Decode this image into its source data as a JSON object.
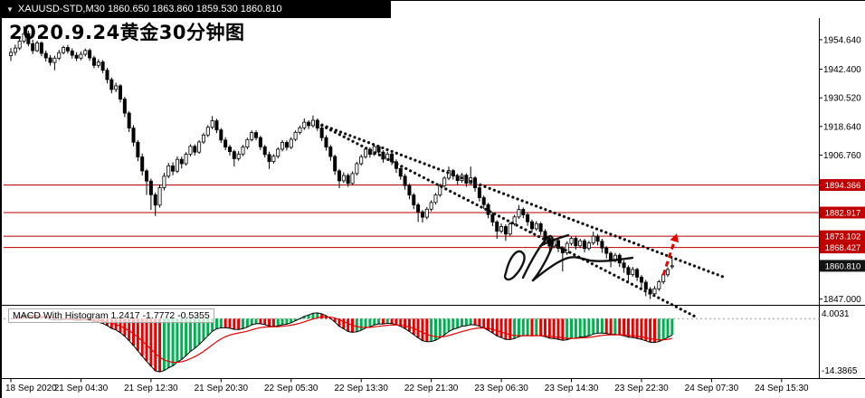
{
  "titlebar": {
    "dropdown_icon": "triangle-down",
    "symbol_line": "XAUUSD-STD,M30  1860.650 1863.860 1859.530 1860.810"
  },
  "chart_title": "2020.9.24黄金30分钟图",
  "macd_panel": {
    "name": "MACD With Histogram",
    "values": "1.2417 -1.7772 -0.5355",
    "axis_top": "4.0031",
    "axis_bottom": "-14.3865"
  },
  "price_axis": {
    "plain_labels": [
      {
        "text": "1954.640",
        "price": 1954.64
      },
      {
        "text": "1942.400",
        "price": 1942.4
      },
      {
        "text": "1930.520",
        "price": 1930.52
      },
      {
        "text": "1918.640",
        "price": 1918.64
      },
      {
        "text": "1906.760",
        "price": 1906.76
      },
      {
        "text": "1847.000",
        "price": 1847.0
      }
    ],
    "level_badges": [
      {
        "text": "1894.366",
        "price": 1894.366
      },
      {
        "text": "1882.917",
        "price": 1882.917
      },
      {
        "text": "1873.102",
        "price": 1873.102
      },
      {
        "text": "1868.427",
        "price": 1868.427
      }
    ],
    "current_badge": {
      "text": "1860.810",
      "price": 1860.81
    }
  },
  "time_axis": {
    "labels": [
      "18 Sep 2020",
      "21 Sep 04:30",
      "21 Sep 12:30",
      "21 Sep 20:30",
      "22 Sep 05:30",
      "22 Sep 13:30",
      "22 Sep 21:30",
      "23 Sep 06:30",
      "23 Sep 14:30",
      "23 Sep 22:30",
      "24 Sep 07:30",
      "24 Sep 15:30"
    ],
    "bars_per_label": 16
  },
  "colors": {
    "up_candle": "#ffffff",
    "down_candle": "#000000",
    "candle_border": "#000000",
    "level_line": "#b40000",
    "level_badge_bg": "#c00000",
    "current_badge_bg": "#141414",
    "hist_up": "#00b050",
    "hist_down": "#e60000",
    "macd_line": "#000000",
    "signal_line": "#e60000",
    "trendline": "#111111",
    "arrow": "#e60000",
    "zero_line": "#9a9a9a"
  },
  "chart_data": {
    "type": "candlestick",
    "title": "2020.9.24黄金30分钟图",
    "symbol": "XAUUSD-STD",
    "timeframe": "M30",
    "last_ohlc": {
      "open": 1860.65,
      "high": 1863.86,
      "low": 1859.53,
      "close": 1860.81
    },
    "price_range": [
      1845.0,
      1962.5
    ],
    "x_labels": [
      "18 Sep 2020",
      "21 Sep 04:30",
      "21 Sep 12:30",
      "21 Sep 20:30",
      "22 Sep 05:30",
      "22 Sep 13:30",
      "22 Sep 21:30",
      "23 Sep 06:30",
      "23 Sep 14:30",
      "23 Sep 22:30",
      "24 Sep 07:30",
      "24 Sep 15:30"
    ],
    "levels": [
      1894.366,
      1882.917,
      1873.102,
      1868.427
    ],
    "current_price": 1860.81,
    "trendlines": [
      {
        "style": "dotted",
        "from": {
          "bar": 70,
          "price": 1920
        },
        "to": {
          "bar": 163,
          "price": 1856
        }
      },
      {
        "style": "dotted",
        "from": {
          "bar": 70,
          "price": 1920
        },
        "to": {
          "bar": 156,
          "price": 1840
        }
      }
    ],
    "arrow": {
      "direction": "up",
      "from": {
        "bar": 149,
        "price": 1857
      },
      "to": {
        "bar": 151.5,
        "price": 1871
      }
    },
    "macd": {
      "label": "MACD With Histogram",
      "current_values": [
        1.2417,
        -1.7772,
        -0.5355
      ],
      "axis_top": 4.0031,
      "axis_bottom": -14.3865
    },
    "candles": [
      [
        1948.0,
        1951.2,
        1945.8,
        1949.4
      ],
      [
        1949.4,
        1952.6,
        1948.1,
        1951.2
      ],
      [
        1951.2,
        1955.0,
        1950.3,
        1954.1
      ],
      [
        1954.1,
        1960.3,
        1953.2,
        1957.2
      ],
      [
        1957.2,
        1958.4,
        1951.9,
        1953.0
      ],
      [
        1953.0,
        1954.6,
        1948.7,
        1950.1
      ],
      [
        1950.1,
        1954.2,
        1949.5,
        1953.3
      ],
      [
        1953.3,
        1954.0,
        1947.8,
        1949.0
      ],
      [
        1949.0,
        1950.2,
        1945.6,
        1947.1
      ],
      [
        1947.1,
        1948.3,
        1943.9,
        1945.2
      ],
      [
        1945.2,
        1948.0,
        1942.0,
        1947.0
      ],
      [
        1947.0,
        1950.4,
        1946.2,
        1949.3
      ],
      [
        1949.3,
        1952.2,
        1948.6,
        1951.4
      ],
      [
        1951.4,
        1952.5,
        1948.9,
        1950.0
      ],
      [
        1950.0,
        1951.1,
        1946.9,
        1948.2
      ],
      [
        1948.2,
        1949.5,
        1945.8,
        1947.0
      ],
      [
        1947.0,
        1949.8,
        1946.1,
        1948.6
      ],
      [
        1948.6,
        1951.0,
        1947.7,
        1950.2
      ],
      [
        1950.2,
        1951.0,
        1945.9,
        1947.1
      ],
      [
        1947.1,
        1948.0,
        1942.8,
        1944.0
      ],
      [
        1944.0,
        1946.6,
        1942.9,
        1945.4
      ],
      [
        1945.4,
        1946.2,
        1940.8,
        1942.0
      ],
      [
        1942.0,
        1943.0,
        1936.5,
        1938.1
      ],
      [
        1938.1,
        1939.0,
        1932.4,
        1934.0
      ],
      [
        1934.0,
        1936.8,
        1932.9,
        1935.5
      ],
      [
        1935.5,
        1936.2,
        1928.6,
        1930.0
      ],
      [
        1930.0,
        1931.0,
        1922.5,
        1924.2
      ],
      [
        1924.2,
        1925.0,
        1916.3,
        1918.0
      ],
      [
        1918.0,
        1919.2,
        1910.4,
        1912.1
      ],
      [
        1912.1,
        1913.0,
        1904.2,
        1906.0
      ],
      [
        1906.0,
        1907.4,
        1898.3,
        1900.2
      ],
      [
        1900.2,
        1901.0,
        1890.2,
        1896.0
      ],
      [
        1896.0,
        1897.0,
        1884.0,
        1890.3
      ],
      [
        1890.3,
        1891.2,
        1881.5,
        1886.0
      ],
      [
        1886.0,
        1894.6,
        1885.0,
        1893.2
      ],
      [
        1893.2,
        1899.4,
        1892.1,
        1898.0
      ],
      [
        1898.0,
        1903.5,
        1897.2,
        1902.3
      ],
      [
        1902.3,
        1903.8,
        1898.4,
        1900.1
      ],
      [
        1900.1,
        1906.2,
        1899.3,
        1905.0
      ],
      [
        1905.0,
        1906.1,
        1901.2,
        1903.2
      ],
      [
        1903.2,
        1908.0,
        1902.4,
        1907.1
      ],
      [
        1907.1,
        1911.3,
        1906.2,
        1910.4
      ],
      [
        1910.4,
        1911.2,
        1906.6,
        1908.0
      ],
      [
        1908.0,
        1913.0,
        1907.3,
        1912.2
      ],
      [
        1912.2,
        1916.0,
        1911.4,
        1915.1
      ],
      [
        1915.1,
        1919.2,
        1914.2,
        1918.3
      ],
      [
        1918.3,
        1923.0,
        1917.5,
        1921.0
      ],
      [
        1921.0,
        1921.8,
        1915.9,
        1917.2
      ],
      [
        1917.2,
        1918.0,
        1911.8,
        1913.0
      ],
      [
        1913.0,
        1914.2,
        1908.8,
        1910.1
      ],
      [
        1910.1,
        1911.0,
        1906.6,
        1908.2
      ],
      [
        1908.2,
        1909.0,
        1902.0,
        1905.3
      ],
      [
        1905.3,
        1908.4,
        1904.4,
        1907.2
      ],
      [
        1907.2,
        1911.0,
        1906.3,
        1910.1
      ],
      [
        1910.1,
        1914.0,
        1909.2,
        1913.2
      ],
      [
        1913.2,
        1917.0,
        1912.4,
        1916.1
      ],
      [
        1916.1,
        1917.0,
        1912.9,
        1914.0
      ],
      [
        1914.0,
        1914.8,
        1908.9,
        1910.2
      ],
      [
        1910.2,
        1911.0,
        1905.8,
        1907.0
      ],
      [
        1907.0,
        1908.2,
        1901.0,
        1904.1
      ],
      [
        1904.1,
        1907.2,
        1903.2,
        1906.3
      ],
      [
        1906.3,
        1910.0,
        1905.4,
        1909.2
      ],
      [
        1909.2,
        1913.0,
        1908.3,
        1912.0
      ],
      [
        1912.0,
        1912.8,
        1908.7,
        1910.0
      ],
      [
        1910.0,
        1914.2,
        1909.2,
        1913.3
      ],
      [
        1913.3,
        1917.0,
        1912.5,
        1916.2
      ],
      [
        1916.2,
        1919.0,
        1915.3,
        1918.1
      ],
      [
        1918.1,
        1922.0,
        1917.2,
        1920.4
      ],
      [
        1920.4,
        1921.2,
        1917.6,
        1919.0
      ],
      [
        1919.0,
        1923.2,
        1918.2,
        1921.2
      ],
      [
        1921.2,
        1922.0,
        1916.8,
        1918.0
      ],
      [
        1918.0,
        1918.8,
        1912.6,
        1914.0
      ],
      [
        1914.0,
        1915.0,
        1908.6,
        1910.1
      ],
      [
        1910.1,
        1911.0,
        1904.4,
        1906.2
      ],
      [
        1906.2,
        1907.0,
        1898.6,
        1900.2
      ],
      [
        1900.2,
        1901.0,
        1893.0,
        1896.1
      ],
      [
        1896.1,
        1899.6,
        1895.2,
        1898.3
      ],
      [
        1898.3,
        1899.2,
        1893.6,
        1895.0
      ],
      [
        1895.0,
        1900.0,
        1894.2,
        1899.1
      ],
      [
        1899.1,
        1904.0,
        1898.3,
        1903.2
      ],
      [
        1903.2,
        1907.0,
        1902.4,
        1906.1
      ],
      [
        1906.1,
        1910.0,
        1905.3,
        1909.2
      ],
      [
        1909.2,
        1910.0,
        1905.7,
        1907.1
      ],
      [
        1907.1,
        1911.2,
        1906.4,
        1910.3
      ],
      [
        1910.3,
        1911.0,
        1906.6,
        1908.0
      ],
      [
        1908.0,
        1908.8,
        1903.6,
        1905.1
      ],
      [
        1905.1,
        1908.2,
        1904.3,
        1907.2
      ],
      [
        1907.2,
        1908.0,
        1902.6,
        1904.0
      ],
      [
        1904.0,
        1905.0,
        1899.4,
        1901.2
      ],
      [
        1901.2,
        1902.0,
        1896.5,
        1898.0
      ],
      [
        1898.0,
        1899.0,
        1892.4,
        1894.1
      ],
      [
        1894.1,
        1895.0,
        1888.4,
        1890.2
      ],
      [
        1890.2,
        1891.0,
        1884.3,
        1886.1
      ],
      [
        1886.1,
        1887.0,
        1879.0,
        1883.2
      ],
      [
        1883.2,
        1884.0,
        1878.8,
        1881.0
      ],
      [
        1881.0,
        1885.2,
        1880.1,
        1884.3
      ],
      [
        1884.3,
        1888.0,
        1883.4,
        1887.1
      ],
      [
        1887.1,
        1891.0,
        1886.3,
        1890.2
      ],
      [
        1890.2,
        1895.0,
        1889.4,
        1894.1
      ],
      [
        1894.1,
        1898.0,
        1893.3,
        1897.2
      ],
      [
        1897.2,
        1902.0,
        1896.4,
        1900.3
      ],
      [
        1900.3,
        1901.0,
        1896.6,
        1898.1
      ],
      [
        1898.1,
        1899.0,
        1894.4,
        1896.2
      ],
      [
        1896.2,
        1899.4,
        1895.3,
        1898.4
      ],
      [
        1898.4,
        1899.2,
        1893.6,
        1895.1
      ],
      [
        1895.1,
        1902.0,
        1894.3,
        1897.3
      ],
      [
        1897.3,
        1898.0,
        1891.6,
        1893.2
      ],
      [
        1893.2,
        1894.0,
        1887.5,
        1889.1
      ],
      [
        1889.1,
        1890.0,
        1884.4,
        1886.2
      ],
      [
        1886.2,
        1887.0,
        1880.5,
        1882.1
      ],
      [
        1882.1,
        1883.0,
        1877.3,
        1879.0
      ],
      [
        1879.0,
        1879.8,
        1872.0,
        1875.2
      ],
      [
        1875.2,
        1878.4,
        1874.3,
        1877.1
      ],
      [
        1877.1,
        1878.0,
        1871.2,
        1874.0
      ],
      [
        1874.0,
        1879.0,
        1873.2,
        1878.2
      ],
      [
        1878.2,
        1882.0,
        1877.4,
        1881.1
      ],
      [
        1881.1,
        1886.0,
        1880.3,
        1884.2
      ],
      [
        1884.2,
        1885.0,
        1880.6,
        1882.0
      ],
      [
        1882.0,
        1883.0,
        1877.4,
        1879.1
      ],
      [
        1879.1,
        1880.0,
        1874.5,
        1876.2
      ],
      [
        1876.2,
        1879.4,
        1875.3,
        1878.3
      ],
      [
        1878.3,
        1879.0,
        1873.6,
        1875.1
      ],
      [
        1875.1,
        1876.0,
        1870.4,
        1872.2
      ],
      [
        1872.2,
        1873.0,
        1866.3,
        1869.0
      ],
      [
        1869.0,
        1872.2,
        1868.1,
        1871.3
      ],
      [
        1871.3,
        1872.0,
        1866.5,
        1868.1
      ],
      [
        1868.1,
        1869.0,
        1858.5,
        1866.2
      ],
      [
        1866.2,
        1871.0,
        1865.3,
        1870.1
      ],
      [
        1870.1,
        1873.0,
        1869.2,
        1872.2
      ],
      [
        1872.2,
        1873.0,
        1867.5,
        1869.1
      ],
      [
        1869.1,
        1872.0,
        1868.2,
        1871.2
      ],
      [
        1871.2,
        1872.0,
        1866.4,
        1868.0
      ],
      [
        1868.0,
        1871.2,
        1867.1,
        1870.3
      ],
      [
        1870.3,
        1875.0,
        1869.4,
        1873.1
      ],
      [
        1873.1,
        1874.0,
        1869.3,
        1871.0
      ],
      [
        1871.0,
        1872.0,
        1866.2,
        1868.2
      ],
      [
        1868.2,
        1869.0,
        1863.9,
        1866.0
      ],
      [
        1866.0,
        1866.8,
        1860.2,
        1863.1
      ],
      [
        1863.1,
        1866.2,
        1862.2,
        1865.2
      ],
      [
        1865.2,
        1866.0,
        1860.3,
        1862.0
      ],
      [
        1862.0,
        1863.0,
        1857.9,
        1860.1
      ],
      [
        1860.1,
        1861.0,
        1854.2,
        1857.2
      ],
      [
        1857.2,
        1860.4,
        1856.3,
        1859.3
      ],
      [
        1859.3,
        1860.0,
        1854.5,
        1856.1
      ],
      [
        1856.1,
        1857.0,
        1851.8,
        1854.0
      ],
      [
        1854.0,
        1855.0,
        1848.2,
        1851.1
      ],
      [
        1851.1,
        1852.0,
        1847.0,
        1849.2
      ],
      [
        1849.2,
        1852.4,
        1848.3,
        1851.3
      ],
      [
        1851.3,
        1855.0,
        1850.4,
        1854.2
      ],
      [
        1854.2,
        1858.0,
        1853.3,
        1857.1
      ],
      [
        1857.1,
        1860.2,
        1856.2,
        1859.3
      ],
      [
        1860.65,
        1863.86,
        1859.53,
        1860.81
      ]
    ]
  }
}
